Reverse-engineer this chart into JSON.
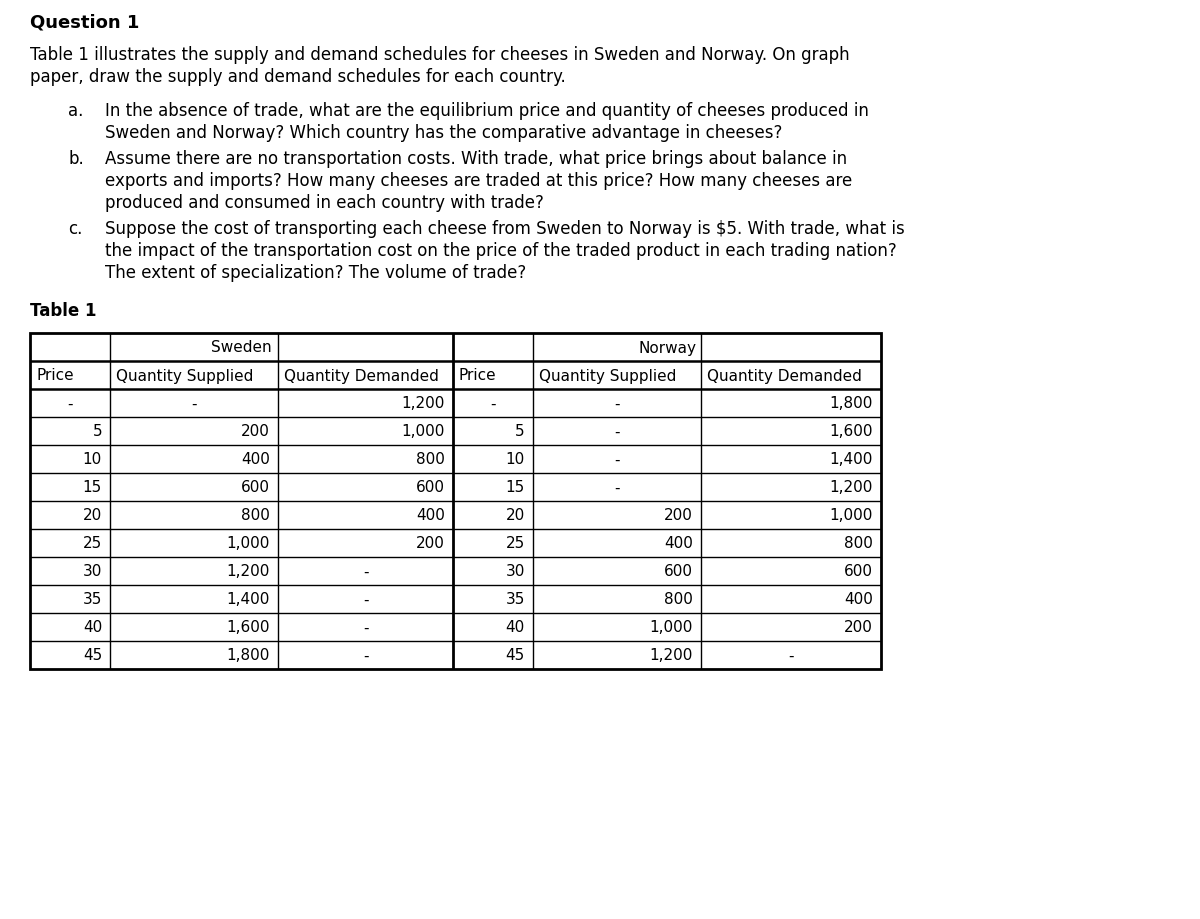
{
  "title": "Question 1",
  "background_color": "#ffffff",
  "text_color": "#000000",
  "title_fontsize": 13,
  "body_fontsize": 12,
  "table_fontsize": 11,
  "fig_width": 12.0,
  "fig_height": 9.2,
  "dpi": 100,
  "sweden_data": [
    [
      "-",
      "-",
      "1,200"
    ],
    [
      "5",
      "200",
      "1,000"
    ],
    [
      "10",
      "400",
      "800"
    ],
    [
      "15",
      "600",
      "600"
    ],
    [
      "20",
      "800",
      "400"
    ],
    [
      "25",
      "1,000",
      "200"
    ],
    [
      "30",
      "1,200",
      "-"
    ],
    [
      "35",
      "1,400",
      "-"
    ],
    [
      "40",
      "1,600",
      "-"
    ],
    [
      "45",
      "1,800",
      "-"
    ]
  ],
  "norway_data": [
    [
      "-",
      "-",
      "1,800"
    ],
    [
      "5",
      "-",
      "1,600"
    ],
    [
      "10",
      "-",
      "1,400"
    ],
    [
      "15",
      "-",
      "1,200"
    ],
    [
      "20",
      "200",
      "1,000"
    ],
    [
      "25",
      "400",
      "800"
    ],
    [
      "30",
      "600",
      "600"
    ],
    [
      "35",
      "800",
      "400"
    ],
    [
      "40",
      "1,000",
      "200"
    ],
    [
      "45",
      "1,200",
      "-"
    ]
  ]
}
